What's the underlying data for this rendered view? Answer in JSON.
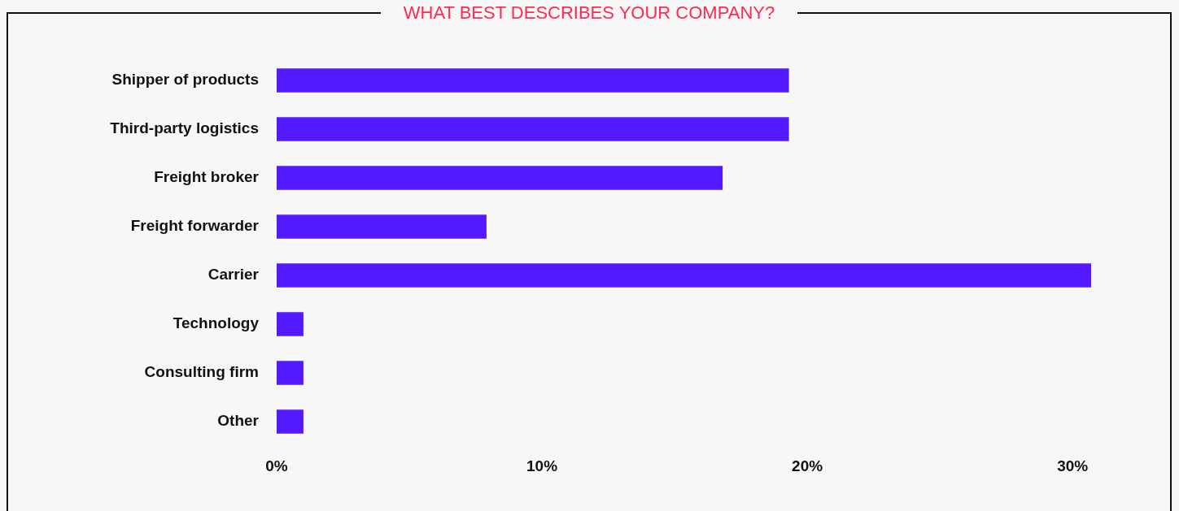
{
  "chart_data": {
    "type": "bar",
    "orientation": "horizontal",
    "title": "WHAT BEST DESCRIBES YOUR COMPANY?",
    "categories": [
      "Shipper of products",
      "Third-party logistics",
      "Freight broker",
      "Freight forwarder",
      "Carrier",
      "Technology",
      "Consulting firm",
      "Other"
    ],
    "values": [
      19.3,
      19.3,
      16.8,
      7.9,
      30.7,
      1.0,
      1.0,
      1.0
    ],
    "color": "#5319ff",
    "xlim": [
      0,
      30.7
    ],
    "xticks": [
      {
        "value": 0,
        "label": "0%"
      },
      {
        "value": 10,
        "label": "10%"
      },
      {
        "value": 20,
        "label": "20%"
      },
      {
        "value": 30,
        "label": "30%"
      }
    ],
    "grid": false,
    "legend": false
  }
}
